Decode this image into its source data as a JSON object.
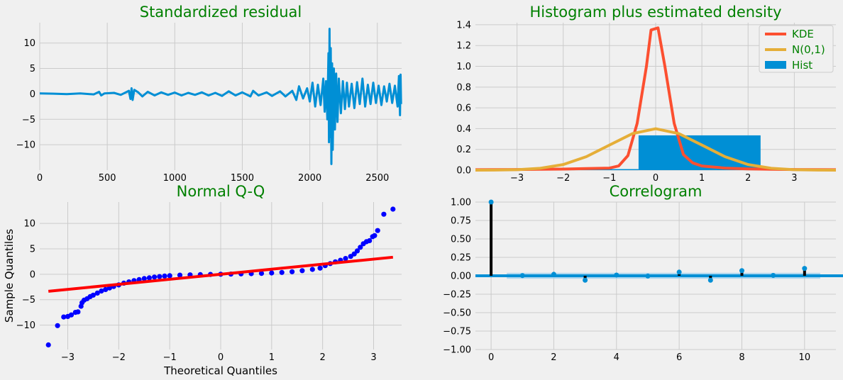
{
  "chart_data": [
    {
      "type": "line",
      "title": "Standardized residual",
      "xlim": [
        0,
        2680
      ],
      "ylim": [
        -15,
        14
      ],
      "xticks": [
        0,
        500,
        1000,
        1500,
        2000,
        2500
      ],
      "yticks": [
        -10,
        -5,
        0,
        5,
        10
      ],
      "xtick_labels": [
        "0",
        "500",
        "1000",
        "1500",
        "2000",
        "2500"
      ],
      "ytick_labels": [
        "−10",
        "−5",
        "0",
        "5",
        "10"
      ],
      "color": "#008fd5",
      "series": [
        {
          "values": [
            [
              0,
              0.1
            ],
            [
              100,
              0.05
            ],
            [
              200,
              -0.05
            ],
            [
              300,
              0.08
            ],
            [
              400,
              -0.1
            ],
            [
              440,
              0.4
            ],
            [
              455,
              -0.3
            ],
            [
              480,
              0.1
            ],
            [
              550,
              0.2
            ],
            [
              600,
              -0.2
            ],
            [
              660,
              0.6
            ],
            [
              672,
              -1.0
            ],
            [
              680,
              1.1
            ],
            [
              688,
              -1.2
            ],
            [
              700,
              0.8
            ],
            [
              730,
              0.3
            ],
            [
              760,
              -0.5
            ],
            [
              800,
              0.4
            ],
            [
              850,
              -0.3
            ],
            [
              900,
              0.3
            ],
            [
              950,
              -0.2
            ],
            [
              1000,
              0.25
            ],
            [
              1050,
              -0.3
            ],
            [
              1100,
              0.2
            ],
            [
              1150,
              -0.2
            ],
            [
              1200,
              0.3
            ],
            [
              1250,
              -0.3
            ],
            [
              1300,
              0.2
            ],
            [
              1350,
              -0.4
            ],
            [
              1400,
              0.5
            ],
            [
              1450,
              -0.3
            ],
            [
              1500,
              0.3
            ],
            [
              1560,
              -0.5
            ],
            [
              1580,
              0.6
            ],
            [
              1620,
              -0.3
            ],
            [
              1680,
              0.3
            ],
            [
              1720,
              -0.4
            ],
            [
              1780,
              0.5
            ],
            [
              1820,
              -0.5
            ],
            [
              1870,
              0.6
            ],
            [
              1900,
              -1.2
            ],
            [
              1920,
              1.5
            ],
            [
              1950,
              -0.9
            ],
            [
              1980,
              1.1
            ],
            [
              2000,
              -1.5
            ],
            [
              2020,
              2.2
            ],
            [
              2040,
              -2.5
            ],
            [
              2060,
              1.8
            ],
            [
              2080,
              -2.2
            ],
            [
              2100,
              3.0
            ],
            [
              2110,
              -3.5
            ],
            [
              2120,
              2.5
            ],
            [
              2130,
              -5.0
            ],
            [
              2138,
              8.0
            ],
            [
              2142,
              -9.5
            ],
            [
              2146,
              12.8
            ],
            [
              2150,
              -8.5
            ],
            [
              2155,
              9.0
            ],
            [
              2160,
              -13.8
            ],
            [
              2165,
              6.0
            ],
            [
              2170,
              -11.0
            ],
            [
              2178,
              5.0
            ],
            [
              2186,
              -7.0
            ],
            [
              2195,
              4.0
            ],
            [
              2205,
              -5.5
            ],
            [
              2215,
              3.0
            ],
            [
              2230,
              -3.8
            ],
            [
              2245,
              2.5
            ],
            [
              2260,
              -3.0
            ],
            [
              2275,
              2.2
            ],
            [
              2290,
              -2.5
            ],
            [
              2310,
              2.0
            ],
            [
              2330,
              -2.8
            ],
            [
              2350,
              2.3
            ],
            [
              2370,
              -2.0
            ],
            [
              2390,
              3.0
            ],
            [
              2410,
              -2.5
            ],
            [
              2430,
              1.8
            ],
            [
              2450,
              -2.0
            ],
            [
              2470,
              2.2
            ],
            [
              2490,
              -1.8
            ],
            [
              2510,
              1.6
            ],
            [
              2530,
              -2.2
            ],
            [
              2550,
              1.5
            ],
            [
              2570,
              -1.5
            ],
            [
              2590,
              2.0
            ],
            [
              2610,
              -1.8
            ],
            [
              2630,
              1.6
            ],
            [
              2650,
              -2.5
            ],
            [
              2660,
              3.5
            ],
            [
              2668,
              -4.2
            ],
            [
              2672,
              3.8
            ],
            [
              2676,
              -2.0
            ]
          ]
        }
      ]
    },
    {
      "type": "line",
      "title": "Histogram plus estimated density",
      "xlim": [
        -3.9,
        3.9
      ],
      "ylim": [
        0,
        1.42
      ],
      "xticks": [
        -3,
        -2,
        -1,
        0,
        1,
        2,
        3
      ],
      "yticks": [
        0.0,
        0.2,
        0.4,
        0.6,
        0.8,
        1.0,
        1.2,
        1.4
      ],
      "xtick_labels": [
        "−3",
        "−2",
        "−1",
        "0",
        "1",
        "2",
        "3"
      ],
      "ytick_labels": [
        "0.0",
        "0.2",
        "0.4",
        "0.6",
        "0.8",
        "1.0",
        "1.2",
        "1.4"
      ],
      "legend": {
        "position": "upper right",
        "entries": [
          "KDE",
          "N(0,1)",
          "Hist"
        ]
      },
      "hist": {
        "color": "#008fd5",
        "bins": [
          {
            "x0": -3.0,
            "x1": -0.37,
            "height": 0.01
          },
          {
            "x0": -0.37,
            "x1": 2.27,
            "height": 0.335
          }
        ]
      },
      "series": [
        {
          "name": "KDE",
          "color": "#fc4f30",
          "values": [
            [
              -3.9,
              0.004
            ],
            [
              -3.0,
              0.006
            ],
            [
              -2.5,
              0.008
            ],
            [
              -2.0,
              0.01
            ],
            [
              -1.5,
              0.015
            ],
            [
              -1.0,
              0.02
            ],
            [
              -0.8,
              0.04
            ],
            [
              -0.6,
              0.14
            ],
            [
              -0.4,
              0.45
            ],
            [
              -0.2,
              1.0
            ],
            [
              -0.1,
              1.35
            ],
            [
              0.05,
              1.37
            ],
            [
              0.2,
              1.0
            ],
            [
              0.4,
              0.45
            ],
            [
              0.6,
              0.15
            ],
            [
              0.8,
              0.07
            ],
            [
              1.0,
              0.04
            ],
            [
              1.5,
              0.02
            ],
            [
              2.0,
              0.012
            ],
            [
              2.5,
              0.008
            ],
            [
              3.0,
              0.006
            ],
            [
              3.9,
              0.004
            ]
          ]
        },
        {
          "name": "N(0,1)",
          "color": "#e5ae38",
          "values": [
            [
              -3.9,
              0.0002
            ],
            [
              -3.5,
              0.0009
            ],
            [
              -3.0,
              0.0044
            ],
            [
              -2.5,
              0.0175
            ],
            [
              -2.0,
              0.054
            ],
            [
              -1.5,
              0.1295
            ],
            [
              -1.0,
              0.242
            ],
            [
              -0.5,
              0.3521
            ],
            [
              0.0,
              0.3989
            ],
            [
              0.5,
              0.3521
            ],
            [
              1.0,
              0.242
            ],
            [
              1.5,
              0.1295
            ],
            [
              2.0,
              0.054
            ],
            [
              2.5,
              0.0175
            ],
            [
              3.0,
              0.0044
            ],
            [
              3.5,
              0.0009
            ],
            [
              3.9,
              0.0002
            ]
          ]
        }
      ]
    },
    {
      "type": "scatter",
      "title": "Normal Q-Q",
      "xlabel": "Theoretical Quantiles",
      "ylabel": "Sample Quantiles",
      "xlim": [
        -3.55,
        3.55
      ],
      "ylim": [
        -14.8,
        14.2
      ],
      "xticks": [
        -3,
        -2,
        -1,
        0,
        1,
        2,
        3
      ],
      "yticks": [
        -10,
        -5,
        0,
        5,
        10
      ],
      "xtick_labels": [
        "−3",
        "−2",
        "−1",
        "0",
        "1",
        "2",
        "3"
      ],
      "ytick_labels": [
        "−10",
        "−5",
        "0",
        "5",
        "10"
      ],
      "reference_line": {
        "color": "#ff0000",
        "from": [
          -3.38,
          -3.35
        ],
        "to": [
          3.38,
          3.35
        ]
      },
      "points_color": "#0000ff",
      "series": [
        {
          "values": [
            [
              -3.38,
              -13.9
            ],
            [
              -3.2,
              -10.1
            ],
            [
              -3.08,
              -8.4
            ],
            [
              -3.0,
              -8.3
            ],
            [
              -2.93,
              -8.0
            ],
            [
              -2.85,
              -7.5
            ],
            [
              -2.8,
              -7.4
            ],
            [
              -2.74,
              -6.3
            ],
            [
              -2.72,
              -5.6
            ],
            [
              -2.68,
              -5.1
            ],
            [
              -2.62,
              -4.8
            ],
            [
              -2.56,
              -4.4
            ],
            [
              -2.5,
              -4.1
            ],
            [
              -2.42,
              -3.7
            ],
            [
              -2.34,
              -3.3
            ],
            [
              -2.26,
              -3.0
            ],
            [
              -2.18,
              -2.7
            ],
            [
              -2.1,
              -2.4
            ],
            [
              -2.0,
              -2.1
            ],
            [
              -1.9,
              -1.75
            ],
            [
              -1.8,
              -1.5
            ],
            [
              -1.7,
              -1.25
            ],
            [
              -1.6,
              -1.05
            ],
            [
              -1.5,
              -0.85
            ],
            [
              -1.4,
              -0.7
            ],
            [
              -1.3,
              -0.55
            ],
            [
              -1.2,
              -0.45
            ],
            [
              -1.1,
              -0.35
            ],
            [
              -1.0,
              -0.28
            ],
            [
              -0.8,
              -0.18
            ],
            [
              -0.6,
              -0.12
            ],
            [
              -0.4,
              -0.07
            ],
            [
              -0.2,
              -0.03
            ],
            [
              0.0,
              0.0
            ],
            [
              0.2,
              0.03
            ],
            [
              0.4,
              0.07
            ],
            [
              0.6,
              0.12
            ],
            [
              0.8,
              0.18
            ],
            [
              1.0,
              0.26
            ],
            [
              1.2,
              0.36
            ],
            [
              1.4,
              0.5
            ],
            [
              1.6,
              0.7
            ],
            [
              1.8,
              0.95
            ],
            [
              1.95,
              1.2
            ],
            [
              2.05,
              1.7
            ],
            [
              2.15,
              2.1
            ],
            [
              2.25,
              2.45
            ],
            [
              2.35,
              2.75
            ],
            [
              2.45,
              3.1
            ],
            [
              2.55,
              3.5
            ],
            [
              2.62,
              4.0
            ],
            [
              2.68,
              4.6
            ],
            [
              2.74,
              5.3
            ],
            [
              2.8,
              6.0
            ],
            [
              2.86,
              6.4
            ],
            [
              2.92,
              6.6
            ],
            [
              2.98,
              7.4
            ],
            [
              3.02,
              7.6
            ],
            [
              3.08,
              8.6
            ],
            [
              3.2,
              11.8
            ],
            [
              3.38,
              12.8
            ]
          ]
        }
      ]
    },
    {
      "type": "bar",
      "title": "Correlogram",
      "xlim": [
        -0.5,
        11.0
      ],
      "ylim": [
        -1.0,
        1.0
      ],
      "xticks": [
        0,
        2,
        4,
        6,
        8,
        10
      ],
      "yticks": [
        -1.0,
        -0.75,
        -0.5,
        -0.25,
        0.0,
        0.25,
        0.5,
        0.75,
        1.0
      ],
      "xtick_labels": [
        "0",
        "2",
        "4",
        "6",
        "8",
        "10"
      ],
      "ytick_labels": [
        "−1.00",
        "−0.75",
        "−0.50",
        "−0.25",
        "0.00",
        "0.25",
        "0.50",
        "0.75",
        "1.00"
      ],
      "confidence_band": [
        -0.04,
        0.04
      ],
      "confidence_color": "#9ed0ef",
      "stem_color": "#000000",
      "marker_color": "#008fd5",
      "hline_color": "#008fd5",
      "categories": [
        0,
        1,
        2,
        3,
        4,
        5,
        6,
        7,
        8,
        9,
        10
      ],
      "values": [
        1.0,
        0.003,
        0.02,
        -0.06,
        0.01,
        -0.004,
        0.05,
        -0.06,
        0.07,
        0.005,
        0.1
      ]
    }
  ]
}
